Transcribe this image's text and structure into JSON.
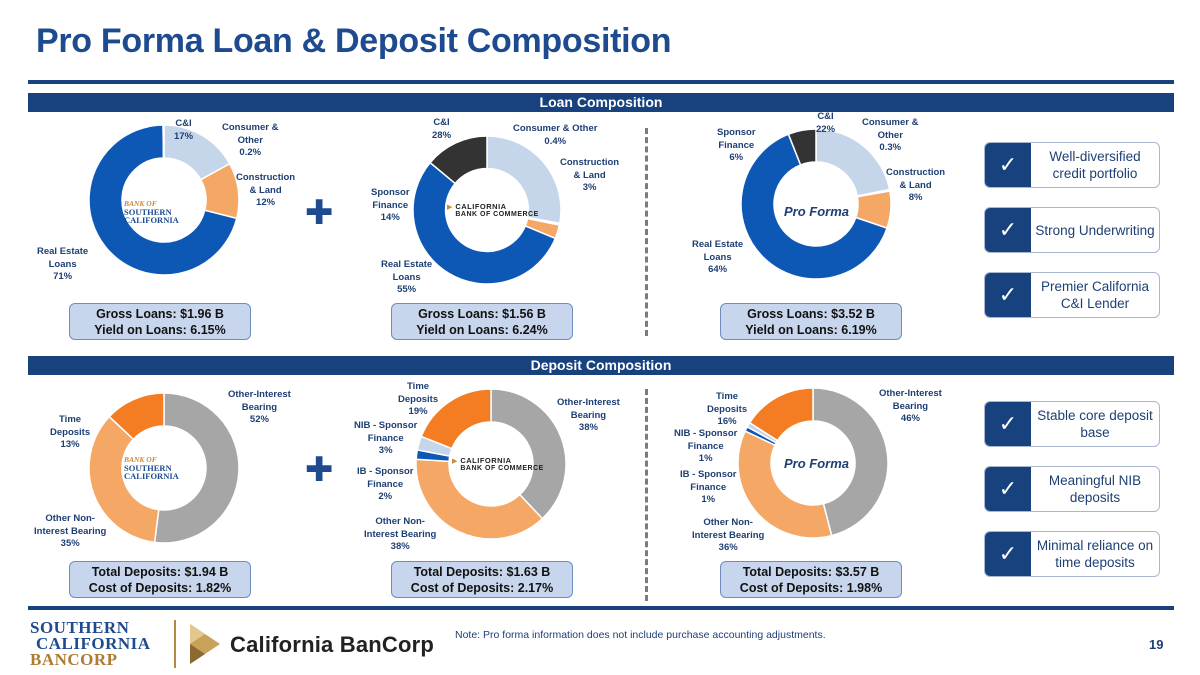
{
  "title": "Pro Forma Loan & Deposit Composition",
  "sections": {
    "loan": "Loan Composition",
    "deposit": "Deposit Composition"
  },
  "colors": {
    "navy": "#17427e",
    "blue": "#0d58b5",
    "lightblue": "#c5d5ea",
    "orange": "#f5a866",
    "deep_orange": "#f47c22",
    "gray": "#a6a6a6",
    "dark": "#333333",
    "summary_fill": "#c7d6ec"
  },
  "brands": {
    "bsc_mini_small": "BANK OF",
    "bsc_mini_1": "SOUTHERN",
    "bsc_mini_2": "CALIFORNIA",
    "cbc_mini_1": "CALIFORNIA",
    "cbc_mini_2": "BANK OF COMMERCE",
    "pro_forma": "Pro Forma",
    "footer_1": "SOUTHERN",
    "footer_2": "CALIFORNIA",
    "footer_3": "BANCORP",
    "footer_right": "California BanCorp"
  },
  "loan_summaries": [
    {
      "line1": "Gross Loans: $1.96 B",
      "line2": "Yield on Loans: 6.15%"
    },
    {
      "line1": "Gross Loans: $1.56 B",
      "line2": "Yield on Loans: 6.24%"
    },
    {
      "line1": "Gross Loans: $3.52 B",
      "line2": "Yield on Loans: 6.19%"
    }
  ],
  "deposit_summaries": [
    {
      "line1": "Total Deposits: $1.94 B",
      "line2": "Cost of Deposits: 1.82%"
    },
    {
      "line1": "Total Deposits: $1.63 B",
      "line2": "Cost of Deposits: 2.17%"
    },
    {
      "line1": "Total Deposits: $3.57 B",
      "line2": "Cost of Deposits: 1.98%"
    }
  ],
  "features": [
    {
      "check": "✓",
      "text": "Well-diversified credit portfolio"
    },
    {
      "check": "✓",
      "text": "Strong Underwriting"
    },
    {
      "check": "✓",
      "text": "Premier California C&I Lender"
    },
    {
      "check": "✓",
      "text": "Stable core deposit base"
    },
    {
      "check": "✓",
      "text": "Meaningful NIB deposits"
    },
    {
      "check": "✓",
      "text": "Minimal reliance on time deposits"
    }
  ],
  "plus_sign": "✚",
  "note": "Note: Pro forma information does not include purchase accounting adjustments.",
  "page_number": "19",
  "chart_data": [
    {
      "type": "pie",
      "title": "Loan Composition - Bank of Southern California",
      "slices": [
        {
          "name": "C&I",
          "value": 17,
          "pct_label": "17%",
          "color": "#c5d5ea"
        },
        {
          "name": "Construction & Land",
          "value": 12,
          "pct_label": "12%",
          "color": "#f5a866"
        },
        {
          "name": "Real Estate Loans",
          "value": 71,
          "pct_label": "71%",
          "color": "#0d58b5"
        },
        {
          "name": "Consumer & Other",
          "value": 0.2,
          "pct_label": "0.2%",
          "color": "#e9eef6"
        }
      ]
    },
    {
      "type": "pie",
      "title": "Loan Composition - California Bank of Commerce",
      "slices": [
        {
          "name": "C&I",
          "value": 28,
          "pct_label": "28%",
          "color": "#c5d5ea"
        },
        {
          "name": "Consumer & Other",
          "value": 0.4,
          "pct_label": "0.4%",
          "color": "#e9eef6"
        },
        {
          "name": "Construction & Land",
          "value": 3,
          "pct_label": "3%",
          "color": "#f5a866"
        },
        {
          "name": "Real Estate Loans",
          "value": 55,
          "pct_label": "55%",
          "color": "#0d58b5"
        },
        {
          "name": "Sponsor Finance",
          "value": 14,
          "pct_label": "14%",
          "color": "#333333"
        }
      ]
    },
    {
      "type": "pie",
      "title": "Loan Composition - Pro Forma",
      "slices": [
        {
          "name": "C&I",
          "value": 22,
          "pct_label": "22%",
          "color": "#c5d5ea"
        },
        {
          "name": "Consumer & Other",
          "value": 0.3,
          "pct_label": "0.3%",
          "color": "#e9eef6"
        },
        {
          "name": "Construction & Land",
          "value": 8,
          "pct_label": "8%",
          "color": "#f5a866"
        },
        {
          "name": "Real Estate Loans",
          "value": 64,
          "pct_label": "64%",
          "color": "#0d58b5"
        },
        {
          "name": "Sponsor Finance",
          "value": 6,
          "pct_label": "6%",
          "color": "#333333"
        }
      ]
    },
    {
      "type": "pie",
      "title": "Deposit Composition - Bank of Southern California",
      "slices": [
        {
          "name": "Other-Interest Bearing",
          "value": 52,
          "pct_label": "52%",
          "color": "#a6a6a6"
        },
        {
          "name": "Other Non-Interest Bearing",
          "value": 35,
          "pct_label": "35%",
          "color": "#f5a866"
        },
        {
          "name": "Time Deposits",
          "value": 13,
          "pct_label": "13%",
          "color": "#f47c22"
        }
      ]
    },
    {
      "type": "pie",
      "title": "Deposit Composition - California Bank of Commerce",
      "slices": [
        {
          "name": "Other-Interest Bearing",
          "value": 38,
          "pct_label": "38%",
          "color": "#a6a6a6"
        },
        {
          "name": "Other Non-Interest Bearing",
          "value": 38,
          "pct_label": "38%",
          "color": "#f5a866"
        },
        {
          "name": "IB - Sponsor Finance",
          "value": 2,
          "pct_label": "2%",
          "color": "#0d58b5"
        },
        {
          "name": "NIB - Sponsor Finance",
          "value": 3,
          "pct_label": "3%",
          "color": "#c5d5ea"
        },
        {
          "name": "Time Deposits",
          "value": 19,
          "pct_label": "19%",
          "color": "#f47c22"
        }
      ]
    },
    {
      "type": "pie",
      "title": "Deposit Composition - Pro Forma",
      "slices": [
        {
          "name": "Other-Interest Bearing",
          "value": 46,
          "pct_label": "46%",
          "color": "#a6a6a6"
        },
        {
          "name": "Other Non-Interest Bearing",
          "value": 36,
          "pct_label": "36%",
          "color": "#f5a866"
        },
        {
          "name": "IB - Sponsor Finance",
          "value": 1,
          "pct_label": "1%",
          "color": "#0d58b5"
        },
        {
          "name": "NIB - Sponsor Finance",
          "value": 1,
          "pct_label": "1%",
          "color": "#c5d5ea"
        },
        {
          "name": "Time Deposits",
          "value": 16,
          "pct_label": "16%",
          "color": "#f47c22"
        }
      ]
    }
  ]
}
